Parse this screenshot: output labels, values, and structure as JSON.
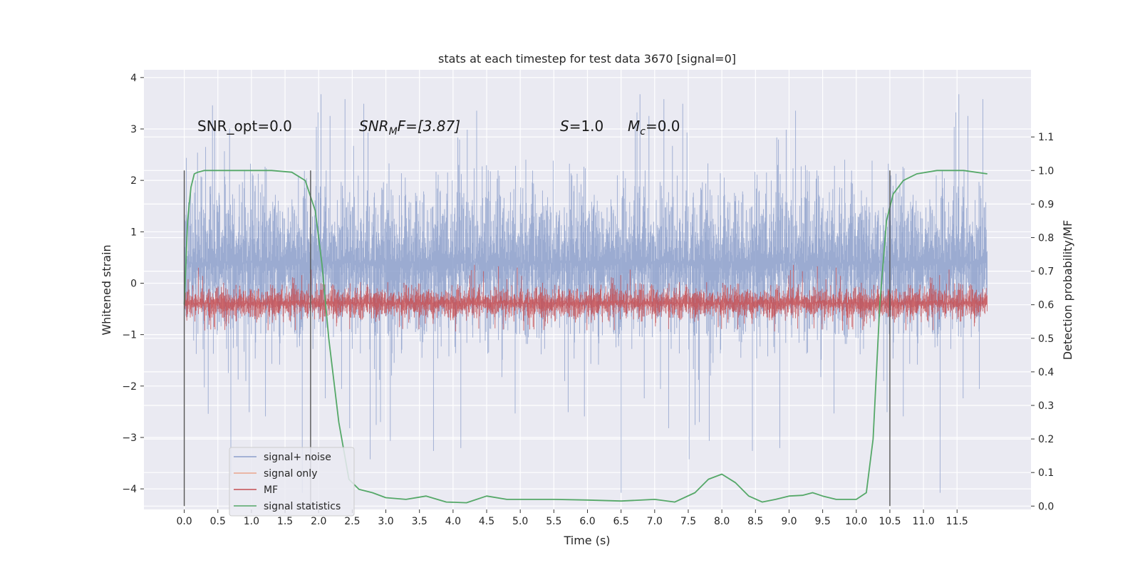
{
  "chart_data": {
    "type": "line",
    "title": "stats at each timestep for test data 3670 [signal=0]",
    "xlabel": "Time (s)",
    "ylabel": "Whitened strain",
    "y2label": "Detection probability/MF",
    "xlim": [
      -0.6,
      12.6
    ],
    "ylim": [
      -4.4,
      4.15
    ],
    "y2lim": [
      -0.01,
      1.3
    ],
    "x_ticks": [
      0.0,
      0.5,
      1.0,
      1.5,
      2.0,
      2.5,
      3.0,
      3.5,
      4.0,
      4.5,
      5.0,
      5.5,
      6.0,
      6.5,
      7.0,
      7.5,
      8.0,
      8.5,
      9.0,
      9.5,
      10.0,
      10.5,
      11.0,
      11.5
    ],
    "x_tick_labels": [
      "0.0",
      "0.5",
      "1.0",
      "1.5",
      "2.0",
      "2.5",
      "3.0",
      "3.5",
      "4.0",
      "4.5",
      "5.0",
      "5.5",
      "6.0",
      "6.5",
      "7.0",
      "7.5",
      "8.0",
      "8.5",
      "9.0",
      "9.5",
      "10.0",
      "10.5",
      "11.0",
      "11.5"
    ],
    "y_ticks": [
      -4,
      -3,
      -2,
      -1,
      0,
      1,
      2,
      3,
      4
    ],
    "y_tick_labels": [
      "−4",
      "−3",
      "−2",
      "−1",
      "0",
      "1",
      "2",
      "3",
      "4"
    ],
    "y2_ticks": [
      0.0,
      0.1,
      0.2,
      0.3,
      0.4,
      0.5,
      0.6,
      0.7,
      0.8,
      0.9,
      1.0,
      1.1
    ],
    "y2_tick_labels": [
      "0.0",
      "0.1",
      "0.2",
      "0.3",
      "0.4",
      "0.5",
      "0.6",
      "0.7",
      "0.8",
      "0.9",
      "1.0",
      "1.1"
    ],
    "grid": true,
    "legend_position": "lower-left",
    "annotations": {
      "snr_opt": "SNR_opt=0.0",
      "snr_mf_label": "SNR",
      "snr_mf_sub": "M",
      "snr_mf_value": "F=[3.87]",
      "s_label": "S",
      "s_value": "=1.0",
      "mc_label": "M",
      "mc_sub": "c",
      "mc_value": "=0.0"
    },
    "vertical_markers": [
      0.0,
      1.88,
      10.5
    ],
    "vertical_marker_range_y2": [
      0.0,
      1.0
    ],
    "series": [
      {
        "name": "signal+ noise",
        "color": "#8da0cb",
        "axis": "left",
        "kind": "noise-band",
        "x_range": [
          0.0,
          11.95
        ],
        "envelope_typical": [
          -2.0,
          2.8
        ],
        "envelope_extreme": [
          -4.1,
          3.7
        ]
      },
      {
        "name": "signal only",
        "color": "#e9a58c",
        "axis": "left",
        "kind": "line",
        "x": [
          0.0,
          11.95
        ],
        "y": [
          0.0,
          0.0
        ]
      },
      {
        "name": "MF",
        "color": "#c44e52",
        "axis": "right",
        "kind": "noise-band",
        "x_range": [
          0.0,
          11.95
        ],
        "envelope_typical": [
          0.53,
          0.68
        ],
        "envelope_extreme": [
          0.52,
          0.72
        ]
      },
      {
        "name": "signal statistics",
        "color": "#55a868",
        "axis": "right",
        "kind": "line",
        "x": [
          0.0,
          0.05,
          0.1,
          0.15,
          0.2,
          0.3,
          0.5,
          1.0,
          1.3,
          1.6,
          1.8,
          1.95,
          2.05,
          2.15,
          2.3,
          2.45,
          2.6,
          2.8,
          3.0,
          3.3,
          3.6,
          3.9,
          4.2,
          4.5,
          4.8,
          5.1,
          5.5,
          6.0,
          6.5,
          7.0,
          7.3,
          7.6,
          7.8,
          8.0,
          8.2,
          8.4,
          8.6,
          8.8,
          9.0,
          9.2,
          9.35,
          9.5,
          9.7,
          10.0,
          10.15,
          10.25,
          10.35,
          10.45,
          10.55,
          10.7,
          10.9,
          11.2,
          11.6,
          11.95
        ],
        "y": [
          0.6,
          0.85,
          0.95,
          0.99,
          0.995,
          1.0,
          1.0,
          1.0,
          1.0,
          0.995,
          0.97,
          0.88,
          0.72,
          0.5,
          0.25,
          0.08,
          0.05,
          0.04,
          0.025,
          0.02,
          0.03,
          0.012,
          0.01,
          0.03,
          0.02,
          0.02,
          0.02,
          0.018,
          0.015,
          0.02,
          0.012,
          0.04,
          0.08,
          0.095,
          0.07,
          0.03,
          0.012,
          0.02,
          0.03,
          0.032,
          0.04,
          0.03,
          0.02,
          0.02,
          0.04,
          0.2,
          0.6,
          0.85,
          0.93,
          0.97,
          0.99,
          1.0,
          1.0,
          0.99
        ]
      }
    ]
  }
}
